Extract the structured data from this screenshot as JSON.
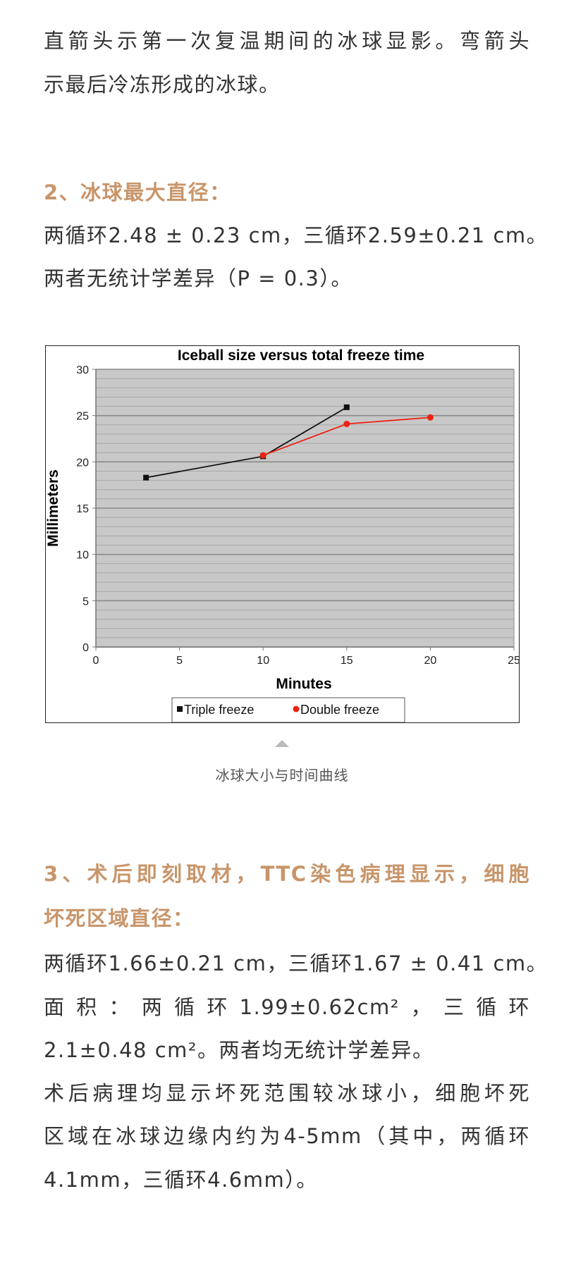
{
  "intro": {
    "line1": "直箭头示第一次复温期间的冰球显影。弯箭头",
    "line2": "示最后冷冻形成的冰球。"
  },
  "section2": {
    "heading": "2、冰球最大直径：",
    "line1": "两循环2.48 ± 0.23 cm，三循环2.59±0.21 cm。",
    "line2": "两者无统计学差异（P = 0.3）。"
  },
  "figure": {
    "caption": "冰球大小与时间曲线",
    "caption_icon": "triangle-up-icon"
  },
  "chart_data": {
    "type": "line",
    "title": "Iceball size versus total freeze time",
    "xlabel": "Minutes",
    "ylabel": "Millimeters",
    "xlim": [
      0,
      25
    ],
    "ylim": [
      0,
      30
    ],
    "xticks": [
      "0",
      "5",
      "10",
      "15",
      "20",
      "25"
    ],
    "yticks": [
      "0",
      "5",
      "10",
      "15",
      "20",
      "25",
      "30"
    ],
    "grid": true,
    "legend_position": "bottom",
    "background": "#c8c8c8",
    "series": [
      {
        "name": "Triple freeze",
        "color": "#111111",
        "marker": "square",
        "x": [
          3,
          10,
          15
        ],
        "y": [
          18.3,
          20.6,
          25.9
        ]
      },
      {
        "name": "Double freeze",
        "color": "#ee2211",
        "marker": "diamond",
        "x": [
          10,
          15,
          20
        ],
        "y": [
          20.7,
          24.1,
          24.8
        ]
      }
    ]
  },
  "section3": {
    "heading_line1": "3、术后即刻取材，TTC染色病理显示，细胞",
    "heading_line2": "坏死区域直径：",
    "line1": "两循环1.66±0.21 cm，三循环1.67 ± 0.41 cm。",
    "line2": "面积：两循环1.99±0.62cm²，三循环",
    "line3": "2.1±0.48 cm²。两者均无统计学差异。",
    "line4": "术后病理均显示坏死范围较冰球小，细胞坏死",
    "line5": "区域在冰球边缘内约为4-5mm（其中，两循环",
    "line6": "4.1mm，三循环4.6mm）。"
  },
  "colors": {
    "heading": "#c8956a",
    "text": "#333333"
  }
}
